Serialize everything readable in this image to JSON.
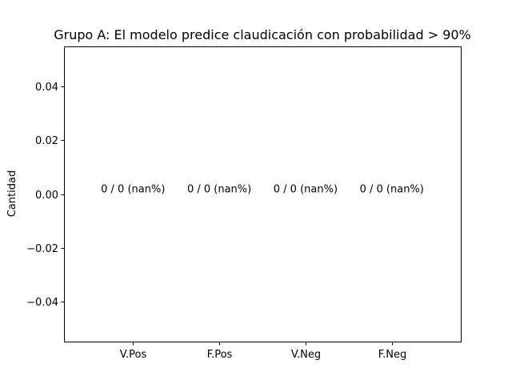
{
  "chart_data": {
    "type": "bar",
    "title": "Grupo A: El modelo predice claudicación con probabilidad > 90%",
    "xlabel": "",
    "ylabel": "Cantidad",
    "categories": [
      "V.Pos",
      "F.Pos",
      "V.Neg",
      "F.Neg"
    ],
    "values": [
      0,
      0,
      0,
      0
    ],
    "bar_labels": [
      "0 / 0 (nan%)",
      "0 / 0 (nan%)",
      "0 / 0 (nan%)",
      "0 / 0 (nan%)"
    ],
    "ylim": [
      -0.055,
      0.055
    ],
    "yticks": [
      -0.04,
      -0.02,
      0.0,
      0.02,
      0.04
    ],
    "ytick_labels": [
      "−0.04",
      "−0.02",
      "0.00",
      "0.02",
      "0.04"
    ],
    "grid": false,
    "legend": "none"
  }
}
